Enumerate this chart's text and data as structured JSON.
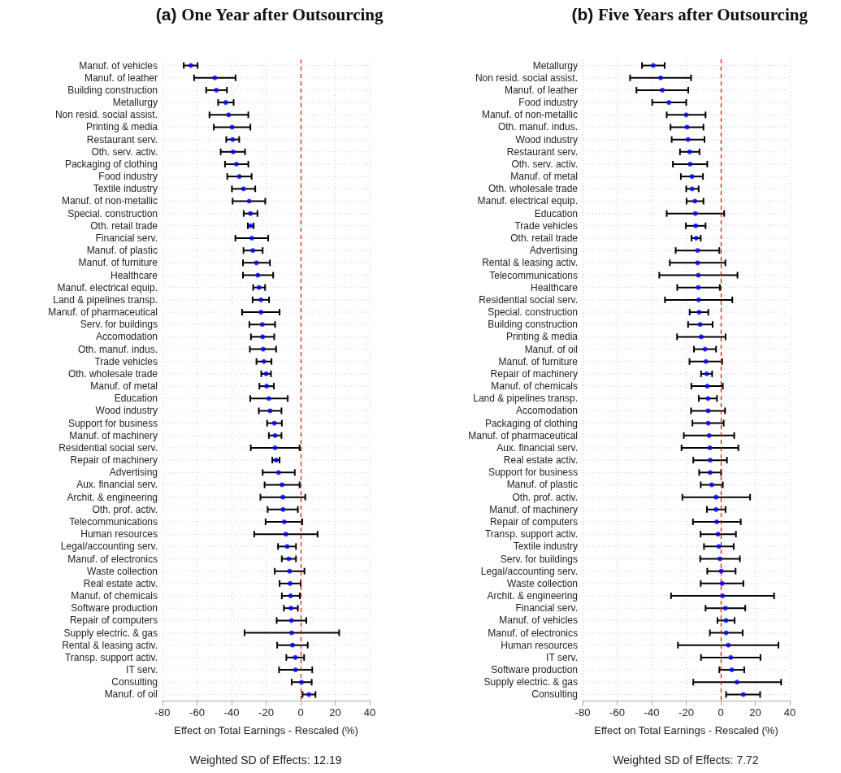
{
  "chart_data": [
    {
      "type": "scatter",
      "orientation": "horizontal",
      "title": "(a) One Year after Outsourcing",
      "xlabel": "Effect on Total Earnings - Rescaled (%)",
      "annotations": [
        "Weighted SD of Effects: 12.19"
      ],
      "categories": [
        "Manuf. of vehicles",
        "Manuf. of leather",
        "Building construction",
        "Metallurgy",
        "Non resid. social assist.",
        "Printing & media",
        "Restaurant serv.",
        "Oth. serv. activ.",
        "Packaging of clothing",
        "Food industry",
        "Textile industry",
        "Manuf. of non-metallic",
        "Special. construction",
        "Oth. retail trade",
        "Financial serv.",
        "Manuf. of plastic",
        "Manuf. of furniture",
        "Healthcare",
        "Manuf. electrical equip.",
        "Land & pipelines transp.",
        "Manuf. of pharmaceutical",
        "Serv. for buildings",
        "Accomodation",
        "Oth. manuf. indus.",
        "Trade vehicles",
        "Oth. wholesale trade",
        "Manuf. of metal",
        "Education",
        "Wood industry",
        "Support for business",
        "Manuf. of machinery",
        "Residential social serv.",
        "Repair of machinery",
        "Advertising",
        "Aux. financial serv.",
        "Archit. & engineering",
        "Oth. prof. activ.",
        "Telecommunications",
        "Human resources",
        "Legal/accounting serv.",
        "Manuf. of electronics",
        "Waste collection",
        "Real estate activ.",
        "Manuf. of chemicals",
        "Software production",
        "Repair of computers",
        "Supply electric. & gas",
        "Rental & leasing activ.",
        "Transp. support activ.",
        "IT serv.",
        "Consulting",
        "Manuf. of oil"
      ],
      "series": [
        {
          "color": "#0000ff",
          "values": [
            -63.6,
            -49.7,
            -48.8,
            -43.4,
            -41.7,
            -39.7,
            -39.4,
            -39.1,
            -37.2,
            -35.5,
            -33.1,
            -29.8,
            -29.1,
            -28.9,
            -28.3,
            -27.7,
            -25.6,
            -24.8,
            -24.1,
            -23,
            -23,
            -22.2,
            -22,
            -21.7,
            -21.3,
            -20,
            -19.7,
            -18.4,
            -17.7,
            -15.2,
            -14.8,
            -14.8,
            -14.2,
            -12.8,
            -10.8,
            -10.3,
            -10.2,
            -9.5,
            -8.6,
            -7.8,
            -6.9,
            -6.4,
            -6.1,
            -5.8,
            -5.6,
            -5.3,
            -5.2,
            -4.7,
            -3.1,
            -3,
            0.5,
            4.8
          ],
          "errors": [
            [
              -67.7,
              -59.7
            ],
            [
              -61.7,
              -37.7
            ],
            [
              -54.7,
              -42.7
            ],
            [
              -47.8,
              -38.8
            ],
            [
              -52.8,
              -30.3
            ],
            [
              -50.3,
              -29.1
            ],
            [
              -43.1,
              -35.6
            ],
            [
              -46.3,
              -32.2
            ],
            [
              -43.8,
              -30.3
            ],
            [
              -42.5,
              -28.4
            ],
            [
              -39.8,
              -26.3
            ],
            [
              -39.4,
              -20.5
            ],
            [
              -33,
              -25
            ],
            [
              -30.6,
              -27.2
            ],
            [
              -37.8,
              -18.8
            ],
            [
              -33.1,
              -22
            ],
            [
              -33.4,
              -17.8
            ],
            [
              -33.4,
              -15.9
            ],
            [
              -27.5,
              -20.6
            ],
            [
              -27.8,
              -18.3
            ],
            [
              -33.9,
              -12.2
            ],
            [
              -29.7,
              -14.8
            ],
            [
              -28.8,
              -15.3
            ],
            [
              -29.4,
              -14.2
            ],
            [
              -25.6,
              -16.9
            ],
            [
              -22.8,
              -17.2
            ],
            [
              -23.9,
              -15.5
            ],
            [
              -29.2,
              -7.5
            ],
            [
              -24.2,
              -11.1
            ],
            [
              -19.4,
              -10.9
            ],
            [
              -18.4,
              -11.1
            ],
            [
              -28.9,
              -0.6
            ],
            [
              -16.4,
              -12.2
            ],
            [
              -22,
              -3.4
            ],
            [
              -20.9,
              -0.6
            ],
            [
              -23.3,
              2.7
            ],
            [
              -19.1,
              -1.6
            ],
            [
              -20.3,
              0.9
            ],
            [
              -26.9,
              9.8
            ],
            [
              -13.1,
              -2.7
            ],
            [
              -10.9,
              -2.7
            ],
            [
              -15,
              2.2
            ],
            [
              -12.2,
              0
            ],
            [
              -10.9,
              -0.5
            ],
            [
              -9.7,
              -1.6
            ],
            [
              -13.9,
              3.3
            ],
            [
              -32.5,
              22.3
            ],
            [
              -13.6,
              4.1
            ],
            [
              -8.3,
              2
            ],
            [
              -12.5,
              6.7
            ],
            [
              -5.2,
              6.4
            ],
            [
              1.1,
              8.6
            ]
          ]
        }
      ],
      "xlim": [
        -80,
        40
      ],
      "xticks": [
        -80,
        -60,
        -40,
        -20,
        0,
        20,
        40
      ],
      "grid": true,
      "marker": "circle",
      "ref_lines": [
        {
          "axis": "x",
          "value": 0,
          "color": "#ff0000",
          "line_style": "dashed"
        }
      ]
    },
    {
      "type": "scatter",
      "orientation": "horizontal",
      "title": "(b) Five Years after Outsourcing",
      "xlabel": "Effect on Total Earnings - Rescaled (%)",
      "annotations": [
        "Weighted SD of Effects: 7.72"
      ],
      "categories": [
        "Metallurgy",
        "Non resid. social assist.",
        "Manuf. of leather",
        "Food industry",
        "Manuf. of non-metallic",
        "Oth. manuf. indus.",
        "Wood industry",
        "Restaurant serv.",
        "Oth. serv. activ.",
        "Manuf. of metal",
        "Oth. wholesale trade",
        "Manuf. electrical equip.",
        "Education",
        "Trade vehicles",
        "Oth. retail trade",
        "Advertising",
        "Rental & leasing activ.",
        "Telecommunications",
        "Healthcare",
        "Residential social serv.",
        "Special. construction",
        "Building construction",
        "Printing & media",
        "Manuf. of oil",
        "Manuf. of furniture",
        "Repair of machinery",
        "Manuf. of chemicals",
        "Land & pipelines transp.",
        "Accomodation",
        "Packaging of clothing",
        "Manuf. of pharmaceutical",
        "Aux. financial serv.",
        "Real estate activ.",
        "Support for business",
        "Manuf. of plastic",
        "Oth. prof. activ.",
        "Manuf. of machinery",
        "Repair of computers",
        "Transp. support activ.",
        "Textile industry",
        "Serv. for buildings",
        "Legal/accounting serv.",
        "Waste collection",
        "Archit. & engineering",
        "Financial serv.",
        "Manuf. of vehicles",
        "Manuf. of electronics",
        "Human resources",
        "IT serv.",
        "Software production",
        "Supply electric. & gas",
        "Consulting"
      ],
      "series": [
        {
          "color": "#0000ff",
          "values": [
            -39.1,
            -34.8,
            -33.8,
            -30,
            -20,
            -19.5,
            -18.9,
            -18,
            -17.7,
            -16.7,
            -16.6,
            -15,
            -14.7,
            -14.5,
            -14.2,
            -13.4,
            -13.4,
            -13,
            -13,
            -12.8,
            -12.5,
            -11.9,
            -11.3,
            -9.1,
            -8.6,
            -8.1,
            -7.8,
            -7.3,
            -7.3,
            -7.2,
            -6.7,
            -6.3,
            -6.1,
            -6.1,
            -5.2,
            -2.7,
            -2.7,
            -2.3,
            -1.6,
            -1.1,
            -0.5,
            0.3,
            0.8,
            1.1,
            2.7,
            3,
            3.1,
            4.4,
            5.8,
            6.4,
            9.4,
            13.1
          ],
          "errors": [
            [
              -45.6,
              -32.5
            ],
            [
              -52.5,
              -17.2
            ],
            [
              -48.8,
              -18.8
            ],
            [
              -39.7,
              -20
            ],
            [
              -31.3,
              -8.8
            ],
            [
              -29.1,
              -10
            ],
            [
              -28.4,
              -9.4
            ],
            [
              -23.6,
              -12.3
            ],
            [
              -27.7,
              -7.8
            ],
            [
              -23.1,
              -10.3
            ],
            [
              -20,
              -12.8
            ],
            [
              -19.8,
              -10
            ],
            [
              -31.3,
              2
            ],
            [
              -20.2,
              -8.8
            ],
            [
              -16.9,
              -11.6
            ],
            [
              -26.1,
              -0.8
            ],
            [
              -29.5,
              2.7
            ],
            [
              -35.6,
              9.7
            ],
            [
              -25.2,
              -0.5
            ],
            [
              -32.3,
              6.7
            ],
            [
              -18,
              -7.2
            ],
            [
              -18.9,
              -4.7
            ],
            [
              -25.3,
              2.8
            ],
            [
              -15.5,
              -2.7
            ],
            [
              -18.1,
              0.8
            ],
            [
              -11.4,
              -5
            ],
            [
              -17,
              1.2
            ],
            [
              -12.7,
              -2.2
            ],
            [
              -17.2,
              2.5
            ],
            [
              -16.4,
              1.7
            ],
            [
              -21.4,
              7.8
            ],
            [
              -22.7,
              10.2
            ],
            [
              -15.9,
              3.6
            ],
            [
              -12.5,
              0.2
            ],
            [
              -11.6,
              1.2
            ],
            [
              -22.2,
              17
            ],
            [
              -8,
              2.8
            ],
            [
              -16.1,
              11.6
            ],
            [
              -11.7,
              8.8
            ],
            [
              -9.7,
              7.5
            ],
            [
              -11.9,
              11.1
            ],
            [
              -7.8,
              8.6
            ],
            [
              -11.6,
              13.1
            ],
            [
              -28.8,
              30.9
            ],
            [
              -8.8,
              14.2
            ],
            [
              -1.9,
              8
            ],
            [
              -6.3,
              12.7
            ],
            [
              -24.8,
              33.4
            ],
            [
              -11.4,
              23
            ],
            [
              -0.8,
              13.6
            ],
            [
              -15.9,
              35
            ],
            [
              3.1,
              22.8
            ]
          ]
        }
      ],
      "xlim": [
        -80,
        40
      ],
      "xticks": [
        -80,
        -60,
        -40,
        -20,
        0,
        20,
        40
      ],
      "grid": true,
      "marker": "circle",
      "ref_lines": [
        {
          "axis": "x",
          "value": 0,
          "color": "#ff0000",
          "line_style": "dashed"
        }
      ]
    }
  ]
}
